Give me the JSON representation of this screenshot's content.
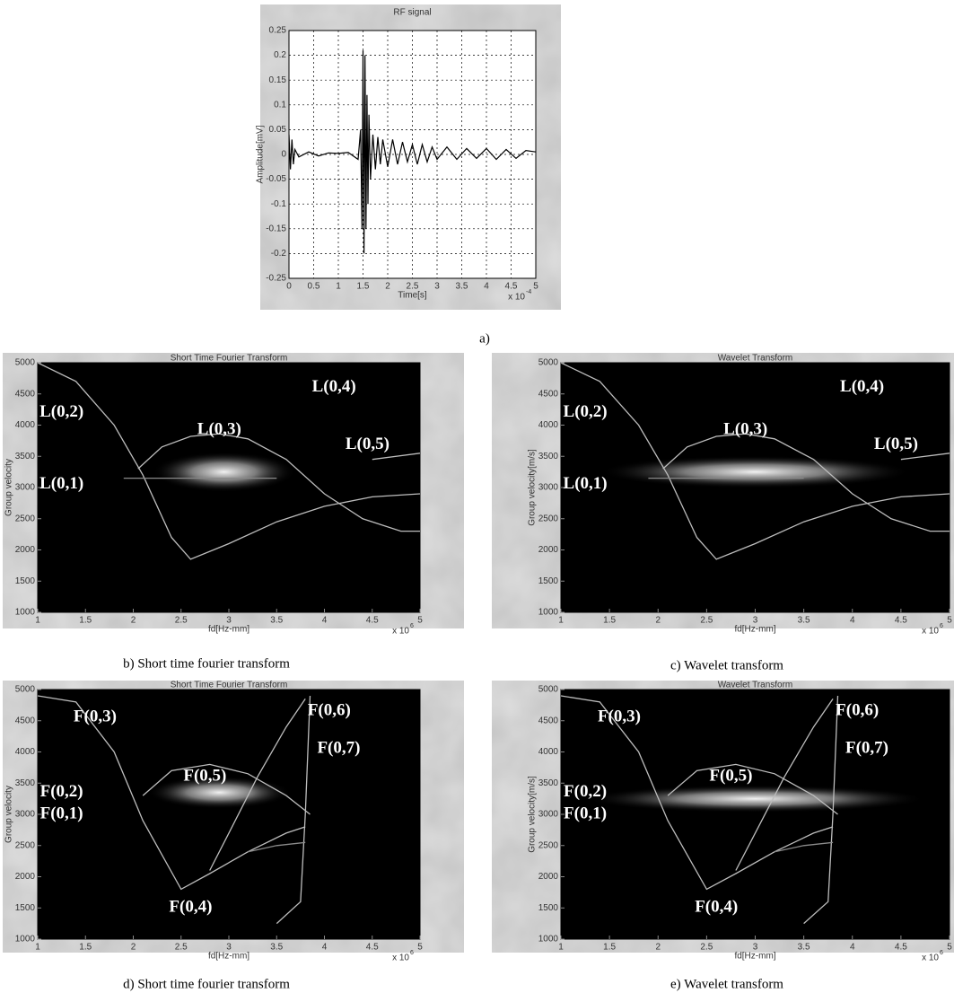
{
  "chart_data": [
    {
      "type": "line",
      "title": "RF signal",
      "xlabel": "Time[s]",
      "ylabel": "Amplitude[mV]",
      "x_multiplier": {
        "base": "x 10",
        "exponent": "-4"
      },
      "xlim": [
        0,
        5
      ],
      "xticks": [
        0,
        0.5,
        1,
        1.5,
        2,
        2.5,
        3,
        3.5,
        4,
        4.5,
        5
      ],
      "ylim": [
        -0.25,
        0.25
      ],
      "yticks": [
        -0.25,
        -0.2,
        -0.15,
        -0.1,
        -0.05,
        0,
        0.05,
        0.1,
        0.15,
        0.2,
        0.25
      ],
      "grid": true,
      "background": "#ffffff",
      "color": "#000000",
      "x": [
        0,
        0.03,
        0.06,
        0.09,
        0.12,
        0.2,
        0.4,
        0.6,
        0.8,
        1.0,
        1.2,
        1.4,
        1.45,
        1.48,
        1.5,
        1.52,
        1.54,
        1.56,
        1.58,
        1.6,
        1.62,
        1.65,
        1.7,
        1.75,
        1.8,
        1.85,
        1.9,
        2.0,
        2.1,
        2.2,
        2.3,
        2.4,
        2.5,
        2.6,
        2.7,
        2.8,
        2.9,
        3.0,
        3.2,
        3.4,
        3.6,
        3.8,
        4.0,
        4.2,
        4.4,
        4.6,
        4.8,
        5.0
      ],
      "values": [
        0.04,
        -0.03,
        0.03,
        -0.02,
        0.01,
        -0.005,
        0.005,
        -0.003,
        0.003,
        0.002,
        0.004,
        -0.01,
        0.05,
        -0.15,
        0.21,
        -0.2,
        0.2,
        -0.15,
        0.12,
        -0.1,
        0.08,
        -0.05,
        0.04,
        -0.03,
        0.035,
        -0.02,
        0.03,
        -0.025,
        0.03,
        -0.02,
        0.025,
        -0.015,
        0.02,
        -0.02,
        0.02,
        -0.015,
        0.015,
        -0.01,
        0.015,
        -0.01,
        0.012,
        -0.008,
        0.012,
        -0.01,
        0.01,
        -0.008,
        0.008,
        0.005
      ],
      "caption": "a)"
    },
    {
      "type": "spectrogram",
      "title": "Short Time Fourier Transform",
      "xlabel": "fd[Hz-mm]",
      "ylabel": "Group velocity",
      "x_multiplier": {
        "base": "x 10",
        "exponent": "6"
      },
      "xlim": [
        1,
        5
      ],
      "xticks": [
        1,
        1.5,
        2,
        2.5,
        3,
        3.5,
        4,
        4.5,
        5
      ],
      "ylim": [
        1000,
        5000
      ],
      "yticks": [
        1000,
        1500,
        2000,
        2500,
        3000,
        3500,
        4000,
        4500,
        5000
      ],
      "grid": false,
      "background": "#000000",
      "series": [
        {
          "color": "#bdbdbd",
          "x": [
            1,
            1.4,
            1.8,
            2.1,
            2.4,
            2.6,
            3,
            3.5,
            4,
            4.5,
            5
          ],
          "values": [
            5000,
            4700,
            4000,
            3200,
            2200,
            1850,
            2100,
            2450,
            2700,
            2850,
            2900
          ]
        },
        {
          "color": "#bdbdbd",
          "x": [
            2.05,
            2.3,
            2.6,
            2.9,
            3.2,
            3.6,
            4,
            4.4,
            4.8,
            5
          ],
          "values": [
            3300,
            3650,
            3820,
            3860,
            3780,
            3450,
            2900,
            2500,
            2300,
            2300
          ]
        },
        {
          "color": "#bdbdbd",
          "x": [
            4.5,
            5
          ],
          "values": [
            3450,
            3550
          ]
        },
        {
          "color": "#8a8a8a",
          "x": [
            1.9,
            3.5
          ],
          "values": [
            3150,
            3150
          ]
        }
      ],
      "annotations": [
        "L(0,2)",
        "L(0,3)",
        "L(0,4)",
        "L(0,5)",
        "L(0,1)"
      ],
      "caption": "b) Short time fourier transform"
    },
    {
      "type": "spectrogram",
      "title": "Wavelet Transform",
      "xlabel": "fd[Hz-mm]",
      "ylabel": "Group velocity[m/s]",
      "x_multiplier": {
        "base": "x 10",
        "exponent": "6"
      },
      "xlim": [
        1,
        5
      ],
      "xticks": [
        1,
        1.5,
        2,
        2.5,
        3,
        3.5,
        4,
        4.5,
        5
      ],
      "ylim": [
        1000,
        5000
      ],
      "yticks": [
        1000,
        1500,
        2000,
        2500,
        3000,
        3500,
        4000,
        4500,
        5000
      ],
      "grid": false,
      "background": "#000000",
      "series": [
        {
          "color": "#bdbdbd",
          "x": [
            1,
            1.4,
            1.8,
            2.1,
            2.4,
            2.6,
            3,
            3.5,
            4,
            4.5,
            5
          ],
          "values": [
            5000,
            4700,
            4000,
            3200,
            2200,
            1850,
            2100,
            2450,
            2700,
            2850,
            2900
          ]
        },
        {
          "color": "#bdbdbd",
          "x": [
            2.05,
            2.3,
            2.6,
            2.9,
            3.2,
            3.6,
            4,
            4.4,
            4.8,
            5
          ],
          "values": [
            3300,
            3650,
            3820,
            3860,
            3780,
            3450,
            2900,
            2500,
            2300,
            2300
          ]
        },
        {
          "color": "#bdbdbd",
          "x": [
            4.5,
            5
          ],
          "values": [
            3450,
            3550
          ]
        },
        {
          "color": "#8a8a8a",
          "x": [
            1.9,
            3.5
          ],
          "values": [
            3150,
            3150
          ]
        }
      ],
      "annotations": [
        "L(0,2)",
        "L(0,3)",
        "L(0,4)",
        "L(0,5)",
        "L(0,1)"
      ],
      "caption": "c) Wavelet transform"
    },
    {
      "type": "spectrogram",
      "title": "Short Time Fourier Transform",
      "xlabel": "fd[Hz-mm]",
      "ylabel": "Group velocity",
      "x_multiplier": {
        "base": "x 10",
        "exponent": "6"
      },
      "xlim": [
        1,
        5
      ],
      "xticks": [
        1,
        1.5,
        2,
        2.5,
        3,
        3.5,
        4,
        4.5,
        5
      ],
      "ylim": [
        1000,
        5000
      ],
      "yticks": [
        1000,
        1500,
        2000,
        2500,
        3000,
        3500,
        4000,
        4500,
        5000
      ],
      "grid": false,
      "background": "#000000",
      "series": [
        {
          "color": "#bdbdbd",
          "x": [
            1,
            1.4,
            1.8,
            2.1,
            2.5,
            2.8,
            3.2,
            3.6,
            3.8
          ],
          "values": [
            4900,
            4800,
            4000,
            2900,
            1800,
            2050,
            2400,
            2700,
            2800
          ]
        },
        {
          "color": "#bdbdbd",
          "x": [
            2.1,
            2.4,
            2.8,
            3.2,
            3.6,
            3.85
          ],
          "values": [
            3300,
            3700,
            3800,
            3650,
            3300,
            3000
          ]
        },
        {
          "color": "#bdbdbd",
          "x": [
            2.8,
            3.0,
            3.3,
            3.6,
            3.8
          ],
          "values": [
            2100,
            2700,
            3600,
            4400,
            4850
          ]
        },
        {
          "color": "#bdbdbd",
          "x": [
            3.5,
            3.75,
            3.8,
            3.85
          ],
          "values": [
            1250,
            1600,
            3000,
            4900
          ]
        },
        {
          "color": "#8a8a8a",
          "x": [
            3.2,
            3.5,
            3.8
          ],
          "values": [
            2400,
            2500,
            2550
          ]
        }
      ],
      "annotations": [
        "F(0,3)",
        "F(0,5)",
        "F(0,6)",
        "F(0,7)",
        "F(0,2)",
        "F(0,1)",
        "F(0,4)"
      ],
      "caption": "d) Short time fourier transform"
    },
    {
      "type": "spectrogram",
      "title": "Wavelet Transform",
      "xlabel": "fd[Hz-mm]",
      "ylabel": "Group velocity[m/s]",
      "x_multiplier": {
        "base": "x 10",
        "exponent": "6"
      },
      "xlim": [
        1,
        5
      ],
      "xticks": [
        1,
        1.5,
        2,
        2.5,
        3,
        3.5,
        4,
        4.5,
        5
      ],
      "ylim": [
        1000,
        5000
      ],
      "yticks": [
        1000,
        1500,
        2000,
        2500,
        3000,
        3500,
        4000,
        4500,
        5000
      ],
      "grid": false,
      "background": "#000000",
      "series": [
        {
          "color": "#bdbdbd",
          "x": [
            1,
            1.4,
            1.8,
            2.1,
            2.5,
            2.8,
            3.2,
            3.6,
            3.8
          ],
          "values": [
            4900,
            4800,
            4000,
            2900,
            1800,
            2050,
            2400,
            2700,
            2800
          ]
        },
        {
          "color": "#bdbdbd",
          "x": [
            2.1,
            2.4,
            2.8,
            3.2,
            3.6,
            3.85
          ],
          "values": [
            3300,
            3700,
            3800,
            3650,
            3300,
            3000
          ]
        },
        {
          "color": "#bdbdbd",
          "x": [
            2.8,
            3.0,
            3.3,
            3.6,
            3.8
          ],
          "values": [
            2100,
            2700,
            3600,
            4400,
            4850
          ]
        },
        {
          "color": "#bdbdbd",
          "x": [
            3.5,
            3.75,
            3.8,
            3.85
          ],
          "values": [
            1250,
            1600,
            3000,
            4900
          ]
        },
        {
          "color": "#8a8a8a",
          "x": [
            3.2,
            3.5,
            3.8
          ],
          "values": [
            2400,
            2500,
            2550
          ]
        }
      ],
      "annotations": [
        "F(0,3)",
        "F(0,5)",
        "F(0,6)",
        "F(0,7)",
        "F(0,2)",
        "F(0,1)",
        "F(0,4)"
      ],
      "caption": "e) Wavelet transform"
    }
  ]
}
